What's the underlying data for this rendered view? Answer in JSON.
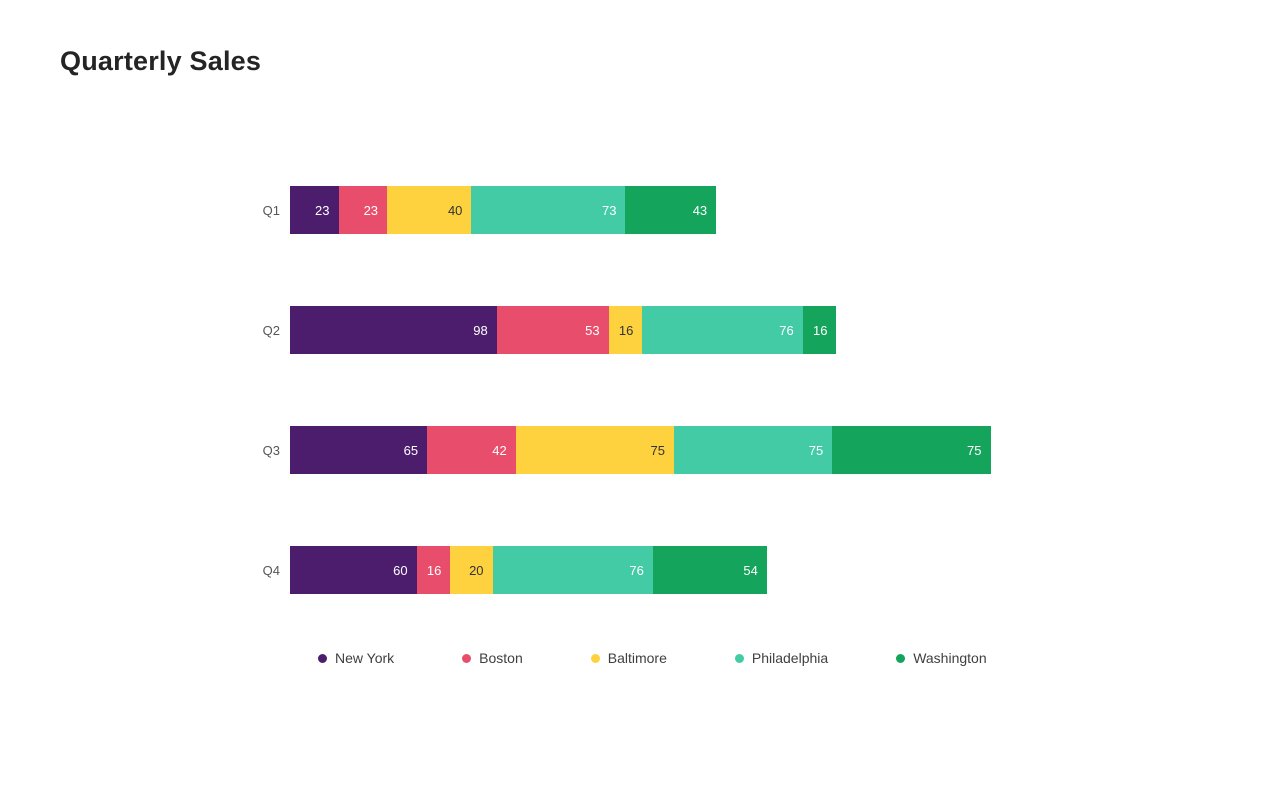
{
  "page": {
    "background": "#ffffff"
  },
  "chart_data": {
    "type": "bar",
    "orientation": "horizontal",
    "stacked": true,
    "title": "Quarterly Sales",
    "categories": [
      "Q1",
      "Q2",
      "Q3",
      "Q4"
    ],
    "series": [
      {
        "name": "New York",
        "color": "#4d1d6d",
        "label_color": "#ffffff",
        "values": [
          23,
          98,
          65,
          60
        ]
      },
      {
        "name": "Boston",
        "color": "#e94d6c",
        "label_color": "#ffffff",
        "values": [
          23,
          53,
          42,
          16
        ]
      },
      {
        "name": "Baltimore",
        "color": "#fdd23e",
        "label_color": "#333333",
        "values": [
          40,
          16,
          75,
          20
        ]
      },
      {
        "name": "Philadelphia",
        "color": "#43cba5",
        "label_color": "#ffffff",
        "values": [
          73,
          76,
          75,
          76
        ]
      },
      {
        "name": "Washington",
        "color": "#14a45c",
        "label_color": "#ffffff",
        "values": [
          43,
          16,
          75,
          54
        ]
      }
    ],
    "totals": [
      202,
      259,
      332,
      226
    ],
    "value_labels": "inside-right",
    "legend_position": "bottom",
    "grid": false,
    "axes_visible": false
  }
}
